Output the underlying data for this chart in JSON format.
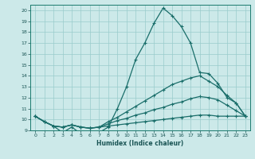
{
  "xlabel": "Humidex (Indice chaleur)",
  "xlim": [
    -0.5,
    23.5
  ],
  "ylim": [
    9,
    20.5
  ],
  "yticks": [
    9,
    10,
    11,
    12,
    13,
    14,
    15,
    16,
    17,
    18,
    19,
    20
  ],
  "xticks": [
    0,
    1,
    2,
    3,
    4,
    5,
    6,
    7,
    8,
    9,
    10,
    11,
    12,
    13,
    14,
    15,
    16,
    17,
    18,
    19,
    20,
    21,
    22,
    23
  ],
  "bg_color": "#cce9e9",
  "line_color": "#1a6e6a",
  "grid_color": "#99cccc",
  "line1_x": [
    0,
    1,
    2,
    3,
    4,
    5,
    6,
    7,
    8,
    9,
    10,
    11,
    12,
    13,
    14,
    15,
    16,
    17,
    18,
    19,
    20,
    21,
    22,
    23
  ],
  "line1_y": [
    10.3,
    9.8,
    9.4,
    8.8,
    9.3,
    8.7,
    8.7,
    8.8,
    9.3,
    11.0,
    13.0,
    15.5,
    17.0,
    18.8,
    20.2,
    19.5,
    18.5,
    17.0,
    14.3,
    14.2,
    13.3,
    12.0,
    11.5,
    10.3
  ],
  "line2_x": [
    0,
    1,
    2,
    3,
    4,
    5,
    6,
    7,
    8,
    9,
    10,
    11,
    12,
    13,
    14,
    15,
    16,
    17,
    18,
    19,
    20,
    21,
    22,
    23
  ],
  "line2_y": [
    10.3,
    9.8,
    9.4,
    9.3,
    9.5,
    9.3,
    9.2,
    9.3,
    9.8,
    10.2,
    10.7,
    11.2,
    11.7,
    12.2,
    12.7,
    13.2,
    13.5,
    13.8,
    14.0,
    13.5,
    13.0,
    12.2,
    11.5,
    10.3
  ],
  "line3_x": [
    0,
    1,
    2,
    3,
    4,
    5,
    6,
    7,
    8,
    9,
    10,
    11,
    12,
    13,
    14,
    15,
    16,
    17,
    18,
    19,
    20,
    21,
    22,
    23
  ],
  "line3_y": [
    10.3,
    9.8,
    9.4,
    9.3,
    9.5,
    9.3,
    9.2,
    9.3,
    9.6,
    9.9,
    10.1,
    10.4,
    10.6,
    10.9,
    11.1,
    11.4,
    11.6,
    11.9,
    12.1,
    12.0,
    11.8,
    11.3,
    10.8,
    10.3
  ],
  "line4_x": [
    0,
    1,
    2,
    3,
    4,
    5,
    6,
    7,
    8,
    9,
    10,
    11,
    12,
    13,
    14,
    15,
    16,
    17,
    18,
    19,
    20,
    21,
    22,
    23
  ],
  "line4_y": [
    10.3,
    9.8,
    9.4,
    9.3,
    9.5,
    9.3,
    9.2,
    9.3,
    9.4,
    9.5,
    9.6,
    9.7,
    9.8,
    9.9,
    10.0,
    10.1,
    10.2,
    10.3,
    10.4,
    10.4,
    10.3,
    10.3,
    10.3,
    10.3
  ]
}
